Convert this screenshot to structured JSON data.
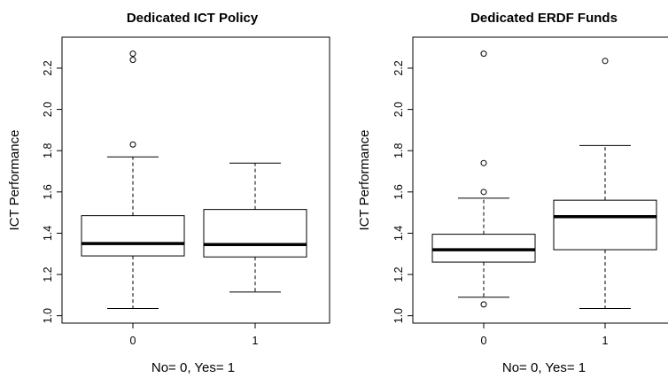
{
  "chart_data": [
    {
      "type": "box",
      "title": "Dedicated ICT Policy",
      "xlabel": "No= 0, Yes= 1",
      "ylabel": "ICT Performance",
      "categories": [
        "0",
        "1"
      ],
      "yticks": [
        "1.0",
        "1.2",
        "1.4",
        "1.6",
        "1.8",
        "2.0",
        "2.2"
      ],
      "ylim": [
        0.99,
        2.29
      ],
      "boxes": [
        {
          "category": "0",
          "min": 1.035,
          "q1": 1.29,
          "median": 1.35,
          "q3": 1.485,
          "max": 1.77,
          "outliers": [
            1.83,
            2.24,
            2.27
          ]
        },
        {
          "category": "1",
          "min": 1.115,
          "q1": 1.285,
          "median": 1.345,
          "q3": 1.515,
          "max": 1.74,
          "outliers": []
        }
      ]
    },
    {
      "type": "box",
      "title": "Dedicated ERDF Funds",
      "xlabel": "No= 0, Yes= 1",
      "ylabel": "ICT Performance",
      "categories": [
        "0",
        "1"
      ],
      "yticks": [
        "1.0",
        "1.2",
        "1.4",
        "1.6",
        "1.8",
        "2.0",
        "2.2"
      ],
      "ylim": [
        0.99,
        2.29
      ],
      "boxes": [
        {
          "category": "0",
          "min": 1.09,
          "q1": 1.26,
          "median": 1.32,
          "q3": 1.395,
          "max": 1.57,
          "outliers": [
            1.055,
            1.6,
            1.74,
            2.27
          ]
        },
        {
          "category": "1",
          "min": 1.035,
          "q1": 1.32,
          "median": 1.48,
          "q3": 1.56,
          "max": 1.825,
          "outliers": [
            2.235
          ]
        }
      ]
    }
  ]
}
